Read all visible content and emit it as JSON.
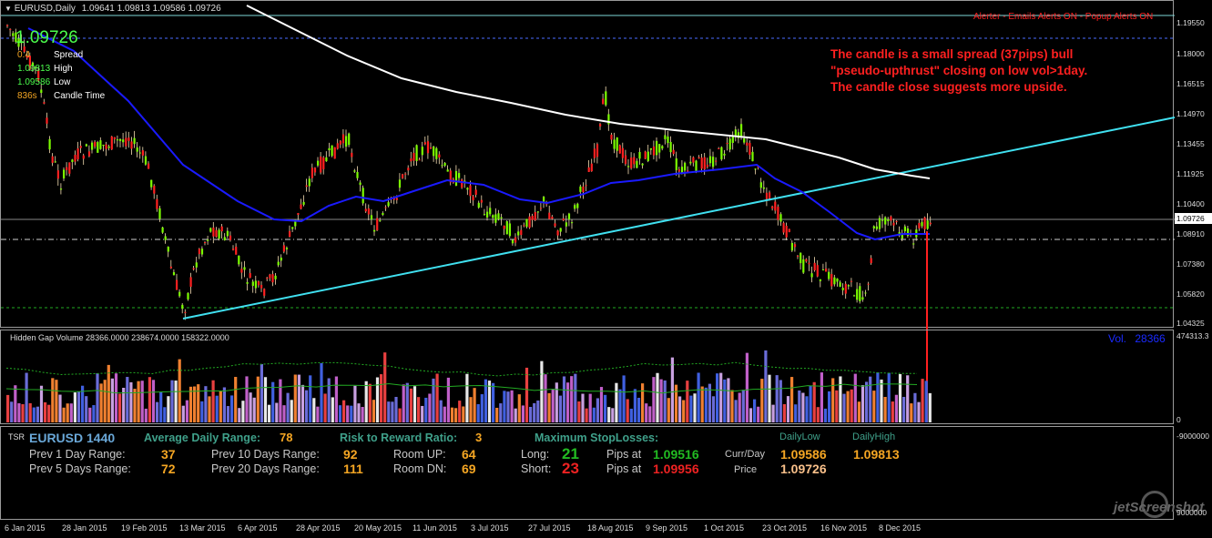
{
  "chart_header": {
    "symbol_tf": "EURUSD,Daily",
    "ohlc": "1.09641 1.09813 1.09586 1.09726"
  },
  "alerts_text": "Alerter - Emails Alerts ON - Popup Alerts ON",
  "info_box": {
    "price": "1.09726",
    "spread_value": "0.4",
    "spread_label": "Spread",
    "high_value": "1.09813",
    "high_label": "High",
    "low_value": "1.09586",
    "low_label": "Low",
    "candle_time_value": "836s",
    "candle_time_label": "Candle Time"
  },
  "annotation": {
    "line1": "The candle is a small spread (37pips) bull",
    "line2": "\"pseudo-upthrust\" closing on low vol>1day.",
    "line3": "The candle close suggests more upside."
  },
  "price_axis": {
    "labels": [
      "1.19550",
      "1.18000",
      "1.16515",
      "1.14970",
      "1.13455",
      "1.11925",
      "1.10400",
      "1.08910",
      "1.07380",
      "1.05820",
      "1.04325"
    ],
    "current_price": "1.09726"
  },
  "volume_panel": {
    "title": "Hidden Gap Volume 28366.0000 238674.0000 158322.0000",
    "vol_label": "Vol.",
    "vol_value": "28366",
    "axis_top": "474313.3",
    "axis_bottom": "0"
  },
  "tsr_axis": {
    "top": "-9000000",
    "bottom": "9000000"
  },
  "tsr": {
    "tag": "TSR",
    "symbol": "EURUSD 1440",
    "adr_label": "Average Daily Range:",
    "adr_value": "78",
    "rr_label": "Risk to Reward Ratio:",
    "rr_value": "3",
    "maxsl_label": "Maximum  StopLosses:",
    "dailylow_label": "DailyLow",
    "dailyhigh_label": "DailyHigh",
    "prev1_label": "Prev 1 Day Range:",
    "prev1_value": "37",
    "prev5_label": "Prev 5 Days Range:",
    "prev5_value": "72",
    "prev10_label": "Prev 10 Days Range:",
    "prev10_value": "92",
    "prev20_label": "Prev 20 Days Range:",
    "prev20_value": "111",
    "roomup_label": "Room UP:",
    "roomup_value": "64",
    "roomdn_label": "Room DN:",
    "roomdn_value": "69",
    "long_label": "Long:",
    "long_value": "21",
    "short_label": "Short:",
    "short_value": "23",
    "pipsat_label": "Pips at",
    "long_price": "1.09516",
    "short_price": "1.09956",
    "currday_label": "Curr/Day",
    "price_label": "Price",
    "dailylow_value": "1.09586",
    "dailyhigh_value": "1.09813",
    "price_value": "1.09726"
  },
  "date_axis": [
    "6 Jan 2015",
    "28 Jan 2015",
    "19 Feb 2015",
    "13 Mar 2015",
    "6 Apr 2015",
    "28 Apr 2015",
    "20 May 2015",
    "11 Jun 2015",
    "3 Jul 2015",
    "27 Jul 2015",
    "18 Aug 2015",
    "9 Sep 2015",
    "1 Oct 2015",
    "23 Oct 2015",
    "16 Nov 2015",
    "8 Dec 2015"
  ],
  "watermark": "jetScreenshot",
  "colors": {
    "bull": "#7cfc00",
    "bear": "#ff2020",
    "wick": "#f5deb3",
    "ma_blue": "#1a1aff",
    "ma_white": "#ffffff",
    "trendline": "#40e0f0",
    "annotation": "#ff2020"
  }
}
